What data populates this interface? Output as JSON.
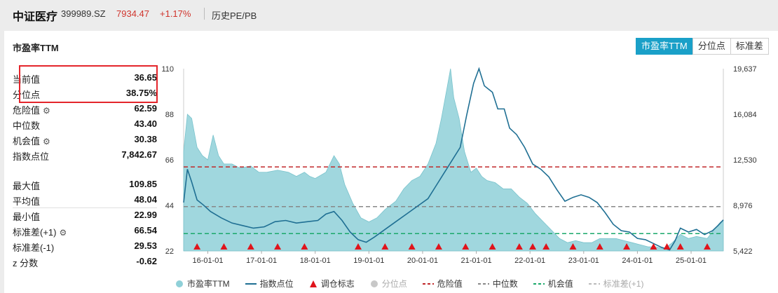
{
  "header": {
    "name": "中证医疗",
    "code": "399989.SZ",
    "price": "7934.47",
    "change": "+1.17%",
    "hist_link": "历史PE/PB"
  },
  "panel": {
    "title": "市盈率TTM",
    "tabs": [
      "市盈率TTM",
      "分位点",
      "标准差"
    ]
  },
  "stats": {
    "group1": [
      {
        "label": "当前值",
        "value": "36.65",
        "gear": false
      },
      {
        "label": "分位点",
        "value": "38.75%",
        "gear": false
      },
      {
        "label": "危险值",
        "value": "62.59",
        "gear": true
      },
      {
        "label": "中位数",
        "value": "43.40",
        "gear": false
      },
      {
        "label": "机会值",
        "value": "30.38",
        "gear": true
      },
      {
        "label": "指数点位",
        "value": "7,842.67",
        "gear": false
      }
    ],
    "group2": [
      {
        "label": "最大值",
        "value": "109.85",
        "gear": false
      },
      {
        "label": "平均值",
        "value": "48.04",
        "gear": false
      },
      {
        "label": "最小值",
        "value": "22.99",
        "gear": false
      },
      {
        "label": "标准差(+1)",
        "value": "66.54",
        "gear": true
      },
      {
        "label": "标准差(-1)",
        "value": "29.53",
        "gear": false
      },
      {
        "label": "z 分数",
        "value": "-0.62",
        "gear": false
      }
    ]
  },
  "legend": [
    {
      "label": "市盈率TTM",
      "kind": "area",
      "color": "#8fd0d8"
    },
    {
      "label": "指数点位",
      "kind": "line",
      "color": "#1f6f93"
    },
    {
      "label": "调仓标志",
      "kind": "triangle",
      "color": "#e0141b"
    },
    {
      "label": "分位点",
      "kind": "dot",
      "color": "#c8c8c8"
    },
    {
      "label": "危险值",
      "kind": "dash",
      "color": "#c0282a"
    },
    {
      "label": "中位数",
      "kind": "dash",
      "color": "#888888"
    },
    {
      "label": "机会值",
      "kind": "dash",
      "color": "#1aa86a"
    },
    {
      "label": "标准差(+1)",
      "kind": "dash",
      "color": "#bbbbbb"
    }
  ],
  "chart_data": {
    "type": "area",
    "x_ticks": [
      "16-01-01",
      "17-01-01",
      "18-01-01",
      "19-01-01",
      "20-01-01",
      "21-01-01",
      "22-01-01",
      "23-01-01",
      "24-01-01",
      "25-01-01"
    ],
    "y_left_ticks": [
      22,
      44,
      66,
      88,
      110
    ],
    "y_right_ticks": [
      "5,422",
      "8,976",
      "12,530",
      "16,084",
      "19,637"
    ],
    "ylim_left": [
      22,
      110
    ],
    "ylim_right": [
      5422,
      19637
    ],
    "xlim": [
      2015.55,
      2025.6
    ],
    "danger_value": 62.59,
    "median_value": 43.4,
    "opportunity_value": 30.38,
    "series": [
      {
        "name": "市盈率TTM",
        "axis": "left",
        "points": [
          [
            2015.55,
            70
          ],
          [
            2015.62,
            88
          ],
          [
            2015.7,
            86
          ],
          [
            2015.8,
            72
          ],
          [
            2015.9,
            68
          ],
          [
            2016.0,
            66
          ],
          [
            2016.1,
            78
          ],
          [
            2016.2,
            68
          ],
          [
            2016.3,
            64
          ],
          [
            2016.45,
            64
          ],
          [
            2016.6,
            62
          ],
          [
            2016.8,
            63
          ],
          [
            2016.95,
            60
          ],
          [
            2017.1,
            60
          ],
          [
            2017.3,
            61
          ],
          [
            2017.5,
            60
          ],
          [
            2017.65,
            58
          ],
          [
            2017.8,
            60
          ],
          [
            2017.9,
            58
          ],
          [
            2018.0,
            57
          ],
          [
            2018.2,
            60
          ],
          [
            2018.35,
            68
          ],
          [
            2018.45,
            64
          ],
          [
            2018.55,
            54
          ],
          [
            2018.7,
            45
          ],
          [
            2018.85,
            38
          ],
          [
            2019.0,
            36
          ],
          [
            2019.15,
            38
          ],
          [
            2019.3,
            42
          ],
          [
            2019.5,
            46
          ],
          [
            2019.65,
            52
          ],
          [
            2019.8,
            56
          ],
          [
            2019.95,
            58
          ],
          [
            2020.1,
            64
          ],
          [
            2020.25,
            74
          ],
          [
            2020.35,
            86
          ],
          [
            2020.45,
            100
          ],
          [
            2020.52,
            110
          ],
          [
            2020.58,
            96
          ],
          [
            2020.68,
            86
          ],
          [
            2020.78,
            70
          ],
          [
            2020.9,
            60
          ],
          [
            2021.0,
            62
          ],
          [
            2021.1,
            58
          ],
          [
            2021.2,
            56
          ],
          [
            2021.35,
            55
          ],
          [
            2021.5,
            52
          ],
          [
            2021.65,
            52
          ],
          [
            2021.8,
            48
          ],
          [
            2021.95,
            45
          ],
          [
            2022.1,
            40
          ],
          [
            2022.25,
            36
          ],
          [
            2022.4,
            32
          ],
          [
            2022.55,
            28
          ],
          [
            2022.7,
            26
          ],
          [
            2022.85,
            27
          ],
          [
            2023.0,
            26
          ],
          [
            2023.15,
            26
          ],
          [
            2023.3,
            28
          ],
          [
            2023.45,
            28
          ],
          [
            2023.6,
            28
          ],
          [
            2023.75,
            27
          ],
          [
            2023.9,
            26
          ],
          [
            2024.05,
            25
          ],
          [
            2024.2,
            24
          ],
          [
            2024.35,
            24
          ],
          [
            2024.5,
            23
          ],
          [
            2024.65,
            26
          ],
          [
            2024.8,
            30
          ],
          [
            2024.95,
            28
          ],
          [
            2025.1,
            29
          ],
          [
            2025.3,
            28
          ],
          [
            2025.45,
            33
          ],
          [
            2025.55,
            36
          ],
          [
            2025.6,
            36.65
          ]
        ]
      },
      {
        "name": "指数点位",
        "axis": "right",
        "points": [
          [
            2015.55,
            9200
          ],
          [
            2015.62,
            11800
          ],
          [
            2015.7,
            10800
          ],
          [
            2015.8,
            9400
          ],
          [
            2015.92,
            9000
          ],
          [
            2016.05,
            8500
          ],
          [
            2016.25,
            8000
          ],
          [
            2016.45,
            7600
          ],
          [
            2016.65,
            7400
          ],
          [
            2016.85,
            7200
          ],
          [
            2017.05,
            7300
          ],
          [
            2017.25,
            7700
          ],
          [
            2017.45,
            7800
          ],
          [
            2017.65,
            7600
          ],
          [
            2017.85,
            7700
          ],
          [
            2018.05,
            7800
          ],
          [
            2018.2,
            8300
          ],
          [
            2018.35,
            8500
          ],
          [
            2018.5,
            7800
          ],
          [
            2018.65,
            6900
          ],
          [
            2018.8,
            6300
          ],
          [
            2018.95,
            6100
          ],
          [
            2019.1,
            6500
          ],
          [
            2019.3,
            7100
          ],
          [
            2019.5,
            7700
          ],
          [
            2019.7,
            8300
          ],
          [
            2019.9,
            8900
          ],
          [
            2020.1,
            9500
          ],
          [
            2020.25,
            10500
          ],
          [
            2020.4,
            11500
          ],
          [
            2020.55,
            12500
          ],
          [
            2020.7,
            13500
          ],
          [
            2020.82,
            16000
          ],
          [
            2020.95,
            18500
          ],
          [
            2021.05,
            19637
          ],
          [
            2021.15,
            18300
          ],
          [
            2021.3,
            17800
          ],
          [
            2021.4,
            16500
          ],
          [
            2021.52,
            16500
          ],
          [
            2021.62,
            15000
          ],
          [
            2021.75,
            14500
          ],
          [
            2021.9,
            13500
          ],
          [
            2022.05,
            12200
          ],
          [
            2022.2,
            11800
          ],
          [
            2022.35,
            11200
          ],
          [
            2022.5,
            10200
          ],
          [
            2022.65,
            9300
          ],
          [
            2022.8,
            9600
          ],
          [
            2022.95,
            9800
          ],
          [
            2023.1,
            9600
          ],
          [
            2023.25,
            9200
          ],
          [
            2023.4,
            8400
          ],
          [
            2023.55,
            7500
          ],
          [
            2023.7,
            7000
          ],
          [
            2023.85,
            6900
          ],
          [
            2024.0,
            6400
          ],
          [
            2024.15,
            6300
          ],
          [
            2024.3,
            6000
          ],
          [
            2024.45,
            5700
          ],
          [
            2024.6,
            5500
          ],
          [
            2024.7,
            6200
          ],
          [
            2024.8,
            7200
          ],
          [
            2024.95,
            6900
          ],
          [
            2025.1,
            7100
          ],
          [
            2025.25,
            6700
          ],
          [
            2025.4,
            7000
          ],
          [
            2025.5,
            7400
          ],
          [
            2025.6,
            7842.67
          ]
        ]
      }
    ],
    "markers": [
      2015.8,
      2016.3,
      2016.8,
      2017.3,
      2017.8,
      2018.8,
      2019.3,
      2019.8,
      2020.3,
      2020.8,
      2021.3,
      2021.8,
      2022.05,
      2022.3,
      2022.8,
      2023.3,
      2023.8,
      2024.3,
      2024.55,
      2024.8,
      2025.3
    ]
  }
}
